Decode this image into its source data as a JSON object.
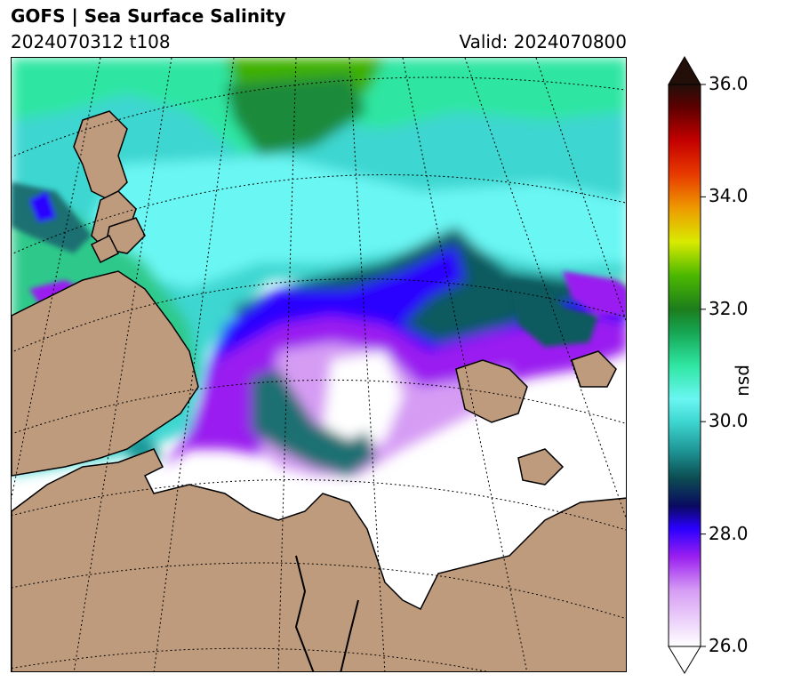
{
  "header": {
    "title": "GOFS  |  Sea Surface Salinity",
    "run_label": "2024070312 t108",
    "valid_label": "Valid: 2024070800"
  },
  "map": {
    "variable": "Sea Surface Salinity",
    "units": "psu",
    "land_color": "#bf9b7e",
    "graticule_style": "dotted"
  },
  "colorbar": {
    "label": "psu",
    "min": 26.0,
    "max": 36.0,
    "ticks": [
      {
        "value": 36.0,
        "label": "36.0"
      },
      {
        "value": 34.0,
        "label": "34.0"
      },
      {
        "value": 32.0,
        "label": "32.0"
      },
      {
        "value": 30.0,
        "label": "30.0"
      },
      {
        "value": 28.0,
        "label": "28.0"
      },
      {
        "value": 26.0,
        "label": "26.0"
      }
    ],
    "extend": "both",
    "stops": [
      {
        "value": 26.0,
        "color": "#ffffff"
      },
      {
        "value": 27.0,
        "color": "#d69cf4"
      },
      {
        "value": 27.6,
        "color": "#9a1ff0"
      },
      {
        "value": 28.1,
        "color": "#2a00ff"
      },
      {
        "value": 28.5,
        "color": "#0a0a60"
      },
      {
        "value": 29.0,
        "color": "#0c4d52"
      },
      {
        "value": 29.5,
        "color": "#1f9898"
      },
      {
        "value": 30.0,
        "color": "#3ed6d0"
      },
      {
        "value": 30.4,
        "color": "#6af6f3"
      },
      {
        "value": 31.0,
        "color": "#2fe6a2"
      },
      {
        "value": 31.6,
        "color": "#16a553"
      },
      {
        "value": 32.0,
        "color": "#1c7d1c"
      },
      {
        "value": 32.6,
        "color": "#4cb800"
      },
      {
        "value": 33.2,
        "color": "#d9ea00"
      },
      {
        "value": 33.8,
        "color": "#ee9a00"
      },
      {
        "value": 34.4,
        "color": "#e83a00"
      },
      {
        "value": 35.0,
        "color": "#c40000"
      },
      {
        "value": 35.6,
        "color": "#5c0000"
      },
      {
        "value": 36.0,
        "color": "#230f0a"
      }
    ]
  }
}
